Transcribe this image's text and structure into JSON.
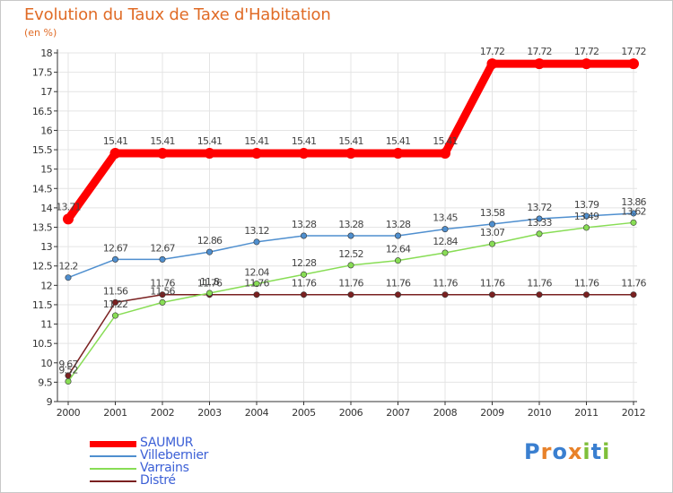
{
  "header": {
    "title": "Evolution du Taux de Taxe d'Habitation",
    "unit": "(en %)"
  },
  "logo": {
    "text": "Proxiti"
  },
  "colors": {
    "title": "#e06b26",
    "legend_text": "#3b5fd6",
    "axis": "#333333",
    "grid": "#e4e4e4"
  },
  "chart_data": {
    "type": "line",
    "title": "Evolution du Taux de Taxe d'Habitation",
    "subtitle": "(en %)",
    "xlabel": "",
    "ylabel": "",
    "x": [
      "2000",
      "2001",
      "2002",
      "2003",
      "2004",
      "2005",
      "2006",
      "2007",
      "2008",
      "2009",
      "2010",
      "2011",
      "2012"
    ],
    "ylim": [
      9,
      18
    ],
    "yticks": [
      9,
      9.5,
      10,
      10.5,
      11,
      11.5,
      12,
      12.5,
      13,
      13.5,
      14,
      14.5,
      15,
      15.5,
      16,
      16.5,
      17,
      17.5,
      18
    ],
    "grid": true,
    "legend_position": "bottom-left",
    "series": [
      {
        "name": "SAUMUR",
        "color": "#ff0000",
        "values": [
          13.71,
          15.41,
          15.41,
          15.41,
          15.41,
          15.41,
          15.41,
          15.41,
          15.41,
          17.72,
          17.72,
          17.72,
          17.72
        ],
        "labels": [
          "13.71",
          "15.41",
          "15.41",
          "15.41",
          "15.41",
          "15.41",
          "15.41",
          "15.41",
          "15.41",
          "17.72",
          "17.72",
          "17.72",
          "17.72"
        ]
      },
      {
        "name": "Villebernier",
        "color": "#4f8fcf",
        "values": [
          12.2,
          12.67,
          12.67,
          12.86,
          13.12,
          13.28,
          13.28,
          13.28,
          13.45,
          13.58,
          13.72,
          13.79,
          13.86
        ],
        "labels": [
          "12.2",
          "12.67",
          "12.67",
          "12.86",
          "13.12",
          "13.28",
          "13.28",
          "13.28",
          "13.45",
          "13.58",
          "13.72",
          "13.79",
          "13.86"
        ]
      },
      {
        "name": "Varrains",
        "color": "#88dd55",
        "values": [
          9.52,
          11.22,
          11.56,
          11.8,
          12.04,
          12.28,
          12.52,
          12.64,
          12.84,
          13.07,
          13.33,
          13.49,
          13.62
        ],
        "labels": [
          "9.52",
          "11.22",
          "11.56",
          "11.8",
          "12.04",
          "12.28",
          "12.52",
          "12.64",
          "12.84",
          "13.07",
          "13.33",
          "13.49",
          "13.62"
        ]
      },
      {
        "name": "Distré",
        "color": "#7a2020",
        "values": [
          9.67,
          11.56,
          11.76,
          11.76,
          11.76,
          11.76,
          11.76,
          11.76,
          11.76,
          11.76,
          11.76,
          11.76,
          11.76
        ],
        "labels": [
          "9.67",
          "11.56",
          "11.76",
          "11.76",
          "11.76",
          "11.76",
          "11.76",
          "11.76",
          "11.76",
          "11.76",
          "11.76",
          "11.76",
          "11.76"
        ]
      }
    ]
  }
}
